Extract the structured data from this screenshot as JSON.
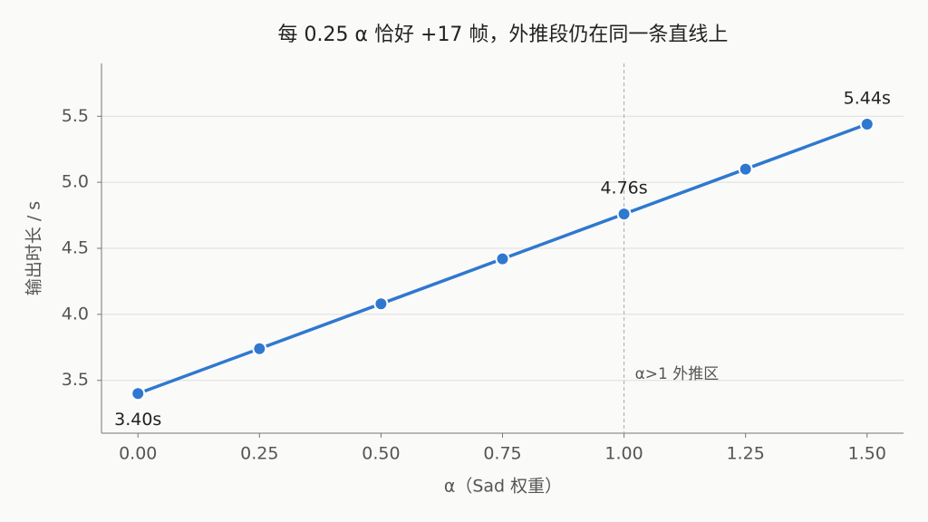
{
  "chart_data": {
    "type": "line",
    "title": "每 0.25 α 恰好 +17 帧，外推段仍在同一条直线上",
    "x_label": "α（Sad 权重）",
    "y_label": "输出时长 / s",
    "x": [
      0,
      0.25,
      0.5,
      0.75,
      1.0,
      1.25,
      1.5
    ],
    "series": [
      {
        "name": "输出时长",
        "color": "#2f78cf",
        "values": [
          3.4,
          3.74,
          4.08,
          4.42,
          4.76,
          5.1,
          5.44
        ],
        "value_labels": [
          "3.40s",
          null,
          null,
          null,
          "4.76s",
          null,
          "5.44s"
        ]
      }
    ],
    "xlim": [
      -0.075,
      1.575
    ],
    "ylim": [
      3.1,
      5.9
    ],
    "xticks": [
      {
        "value": 0,
        "label": "0.00"
      },
      {
        "value": 0.25,
        "label": "0.25"
      },
      {
        "value": 0.5,
        "label": "0.50"
      },
      {
        "value": 0.75,
        "label": "0.75"
      },
      {
        "value": 1,
        "label": "1.00"
      },
      {
        "value": 1.25,
        "label": "1.25"
      },
      {
        "value": 1.5,
        "label": "1.50"
      }
    ],
    "yticks": [
      3.5,
      {
        "value": 4,
        "label": "4.0"
      },
      4.5,
      {
        "value": 5,
        "label": "5.0"
      },
      5.5
    ],
    "grid": true,
    "vline": 1,
    "annotation": "α>1 外推区"
  }
}
